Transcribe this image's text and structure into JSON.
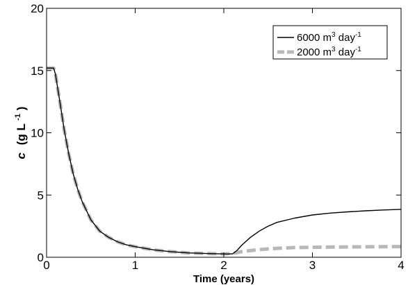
{
  "chart_data": {
    "type": "line",
    "xlabel": "Time (years)",
    "ylabel": {
      "main": "c",
      "unit": "(g L",
      "sup": "-1",
      "close": ")"
    },
    "xlim": [
      0,
      4
    ],
    "ylim": [
      0,
      20
    ],
    "xticks": [
      0,
      1,
      2,
      3,
      4
    ],
    "yticks": [
      0,
      5,
      10,
      15,
      20
    ],
    "grid": false,
    "legend_position": "top-right",
    "series": [
      {
        "name": {
          "prefix": "6000 m",
          "sup1": "3",
          "mid": " day",
          "sup2": "-1"
        },
        "color": "#000000",
        "style": "solid",
        "x": [
          0,
          0.08,
          0.1,
          0.15,
          0.2,
          0.25,
          0.3,
          0.35,
          0.4,
          0.5,
          0.6,
          0.7,
          0.8,
          0.9,
          1.0,
          1.2,
          1.4,
          1.6,
          1.8,
          2.0,
          2.05,
          2.1,
          2.15,
          2.2,
          2.3,
          2.4,
          2.5,
          2.6,
          2.8,
          3.0,
          3.2,
          3.4,
          3.6,
          3.8,
          4.0
        ],
        "y": [
          15.2,
          15.2,
          14.7,
          12.5,
          10.2,
          8.3,
          6.7,
          5.5,
          4.5,
          3.0,
          2.1,
          1.6,
          1.25,
          1.0,
          0.85,
          0.6,
          0.45,
          0.35,
          0.3,
          0.27,
          0.26,
          0.28,
          0.55,
          0.95,
          1.6,
          2.1,
          2.5,
          2.8,
          3.15,
          3.4,
          3.55,
          3.65,
          3.73,
          3.8,
          3.85
        ]
      },
      {
        "name": {
          "prefix": "2000 m",
          "sup1": "3",
          "mid": " day",
          "sup2": "-1"
        },
        "color": "#b8b8b8",
        "style": "dashed",
        "x": [
          0,
          0.08,
          0.1,
          0.15,
          0.2,
          0.25,
          0.3,
          0.35,
          0.4,
          0.5,
          0.6,
          0.7,
          0.8,
          0.9,
          1.0,
          1.2,
          1.4,
          1.6,
          1.8,
          2.0,
          2.1,
          2.2,
          2.4,
          2.6,
          2.8,
          3.0,
          3.2,
          3.4,
          3.6,
          3.8,
          4.0
        ],
        "y": [
          15.2,
          15.2,
          14.7,
          12.5,
          10.2,
          8.3,
          6.7,
          5.5,
          4.5,
          3.0,
          2.1,
          1.6,
          1.25,
          1.0,
          0.85,
          0.6,
          0.45,
          0.35,
          0.3,
          0.27,
          0.3,
          0.45,
          0.62,
          0.72,
          0.78,
          0.8,
          0.82,
          0.83,
          0.84,
          0.85,
          0.86
        ]
      }
    ]
  }
}
